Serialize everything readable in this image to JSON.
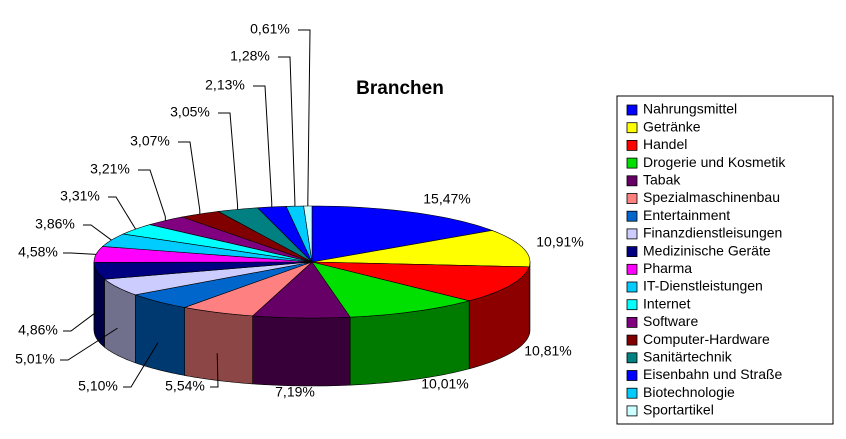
{
  "chart_data": {
    "type": "pie3d",
    "title": "Branchen",
    "categories": [
      "Nahrungsmittel",
      "Getränke",
      "Handel",
      "Drogerie und Kosmetik",
      "Tabak",
      "Spezialmaschinenbau",
      "Entertainment",
      "Finanzdienstleisungen",
      "Medizinische Geräte",
      "Pharma",
      "IT-Dienstleistungen",
      "Internet",
      "Software",
      "Computer-Hardware",
      "Sanitärtechnik",
      "Eisenbahn und Straße",
      "Biotechnologie",
      "Sportartikel"
    ],
    "values": [
      15.47,
      10.91,
      10.81,
      10.01,
      7.19,
      5.54,
      5.1,
      5.01,
      4.86,
      4.58,
      3.86,
      3.31,
      3.21,
      3.07,
      3.05,
      2.13,
      1.28,
      0.61
    ],
    "value_labels": [
      "15,47%",
      "10,91%",
      "10,81%",
      "10,01%",
      "7,19%",
      "5,54%",
      "5,10%",
      "5,01%",
      "4,86%",
      "4,58%",
      "3,86%",
      "3,31%",
      "3,21%",
      "3,07%",
      "3,05%",
      "2,13%",
      "1,28%",
      "0,61%"
    ],
    "colors": [
      "#0000ff",
      "#ffff00",
      "#ff0000",
      "#00e000",
      "#660066",
      "#ff8080",
      "#0066cc",
      "#ccccff",
      "#000080",
      "#ff00ff",
      "#00ccff",
      "#00ffff",
      "#800080",
      "#800000",
      "#008080",
      "#0000ff",
      "#00ccff",
      "#ccffff"
    ],
    "legend": "right"
  }
}
